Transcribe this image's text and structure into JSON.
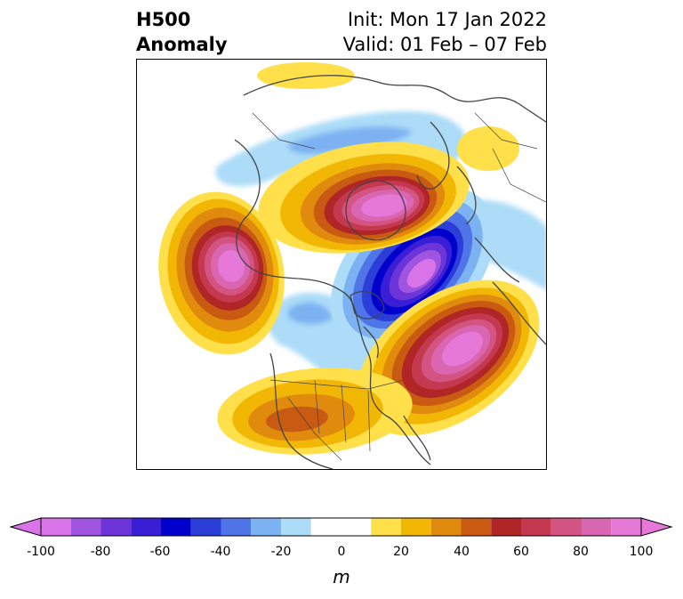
{
  "title": {
    "left_line1": "H500",
    "left_line2": "Anomaly",
    "right_line1": "Init: Mon 17 Jan 2022",
    "right_line2": "Valid: 01 Feb – 07 Feb"
  },
  "colorbar": {
    "ticks": [
      "-100",
      "-80",
      "-60",
      "-40",
      "-20",
      "0",
      "20",
      "40",
      "60",
      "80",
      "100"
    ],
    "unit": "m",
    "colors": [
      "#d973e8",
      "#a055e0",
      "#6b35d8",
      "#3a1ed6",
      "#0000cc",
      "#2b3fd8",
      "#4f75e8",
      "#7db2f2",
      "#acdcf8",
      "#ffffff",
      "#ffe04a",
      "#f2b705",
      "#e08a0e",
      "#c85a12",
      "#b02525",
      "#c43950",
      "#d35480",
      "#d966b0",
      "#e678d8"
    ]
  }
}
